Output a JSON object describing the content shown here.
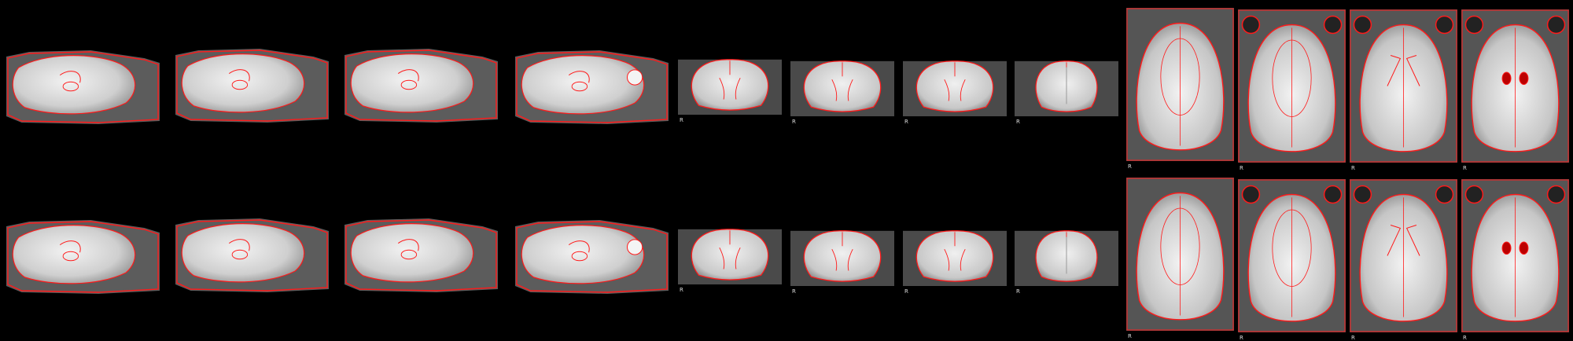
{
  "figure": {
    "background": "#000000",
    "outline_color": "#ff1a1a",
    "tissue_colors": {
      "brain": "#d8d8d8",
      "muscle": "#5a5a5a",
      "skull": "#8a8a8a"
    },
    "rows": [
      {
        "name": "row-1",
        "outline_style": "registration-edges"
      },
      {
        "name": "row-2",
        "outline_style": "registration-edges"
      }
    ],
    "panels": [
      {
        "view": "sagittal",
        "count": 4
      },
      {
        "view": "coronal",
        "count": 4,
        "orientation_label": "R"
      },
      {
        "view": "axial",
        "count": 4,
        "orientation_label": "R"
      }
    ]
  }
}
